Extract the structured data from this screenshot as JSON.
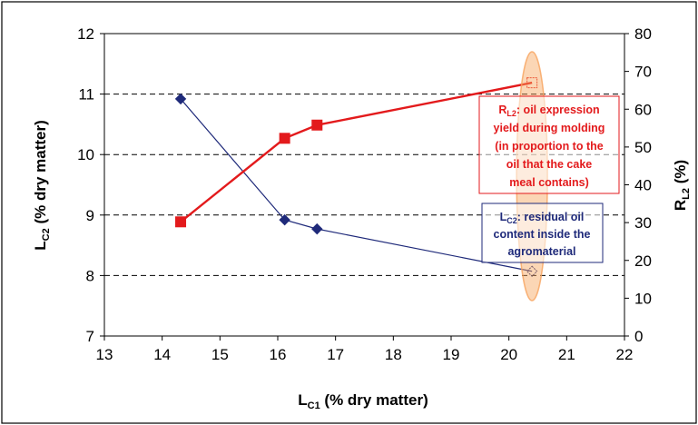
{
  "chart_data": {
    "type": "line",
    "x_axis": {
      "label": "L",
      "label_sub": "C1",
      "label_rest": " (% dry matter)",
      "range": [
        13,
        22
      ],
      "ticks": [
        "13",
        "14",
        "15",
        "16",
        "17",
        "18",
        "19",
        "20",
        "21",
        "22"
      ]
    },
    "y_left": {
      "label": "L",
      "label_sub": "C2",
      "label_rest": " (% dry matter)",
      "range": [
        7,
        12
      ],
      "ticks": [
        "7",
        "8",
        "9",
        "10",
        "11",
        "12"
      ]
    },
    "y_right": {
      "label": "R",
      "label_sub": "L2",
      "label_rest": " (%)",
      "range": [
        0,
        80
      ],
      "ticks": [
        "0",
        "10",
        "20",
        "30",
        "40",
        "50",
        "60",
        "70",
        "80"
      ]
    },
    "grid": "horizontal dashed",
    "series": [
      {
        "axis": "left",
        "marker": "diamond",
        "color": "#1f2a7a",
        "x": [
          14.32,
          16.12,
          16.68,
          20.4
        ],
        "y": [
          10.92,
          8.92,
          8.77,
          8.07
        ]
      },
      {
        "axis": "right",
        "marker": "square",
        "color": "#e31a1c",
        "x": [
          14.32,
          16.12,
          16.68,
          20.4
        ],
        "y": [
          30.2,
          52.3,
          55.8,
          67.0
        ]
      }
    ],
    "annotations": [
      {
        "id": "red",
        "color": "#e31a1c",
        "lines": [
          {
            "main": "R",
            "sub": "L2",
            "rest": ": oil expression"
          },
          {
            "main": "yield during molding",
            "sub": "",
            "rest": ""
          },
          {
            "main": "(in proportion to the",
            "sub": "",
            "rest": ""
          },
          {
            "main": "oil that the cake",
            "sub": "",
            "rest": ""
          },
          {
            "main": "meal contains)",
            "sub": "",
            "rest": ""
          }
        ]
      },
      {
        "id": "blue",
        "color": "#1f2a7a",
        "lines": [
          {
            "main": "L",
            "sub": "C2",
            "rest": ": residual oil"
          },
          {
            "main": "content inside the",
            "sub": "",
            "rest": ""
          },
          {
            "main": "agromaterial",
            "sub": "",
            "rest": ""
          }
        ]
      }
    ],
    "highlight": {
      "x": 20.4,
      "color": "#f7a35c"
    }
  }
}
